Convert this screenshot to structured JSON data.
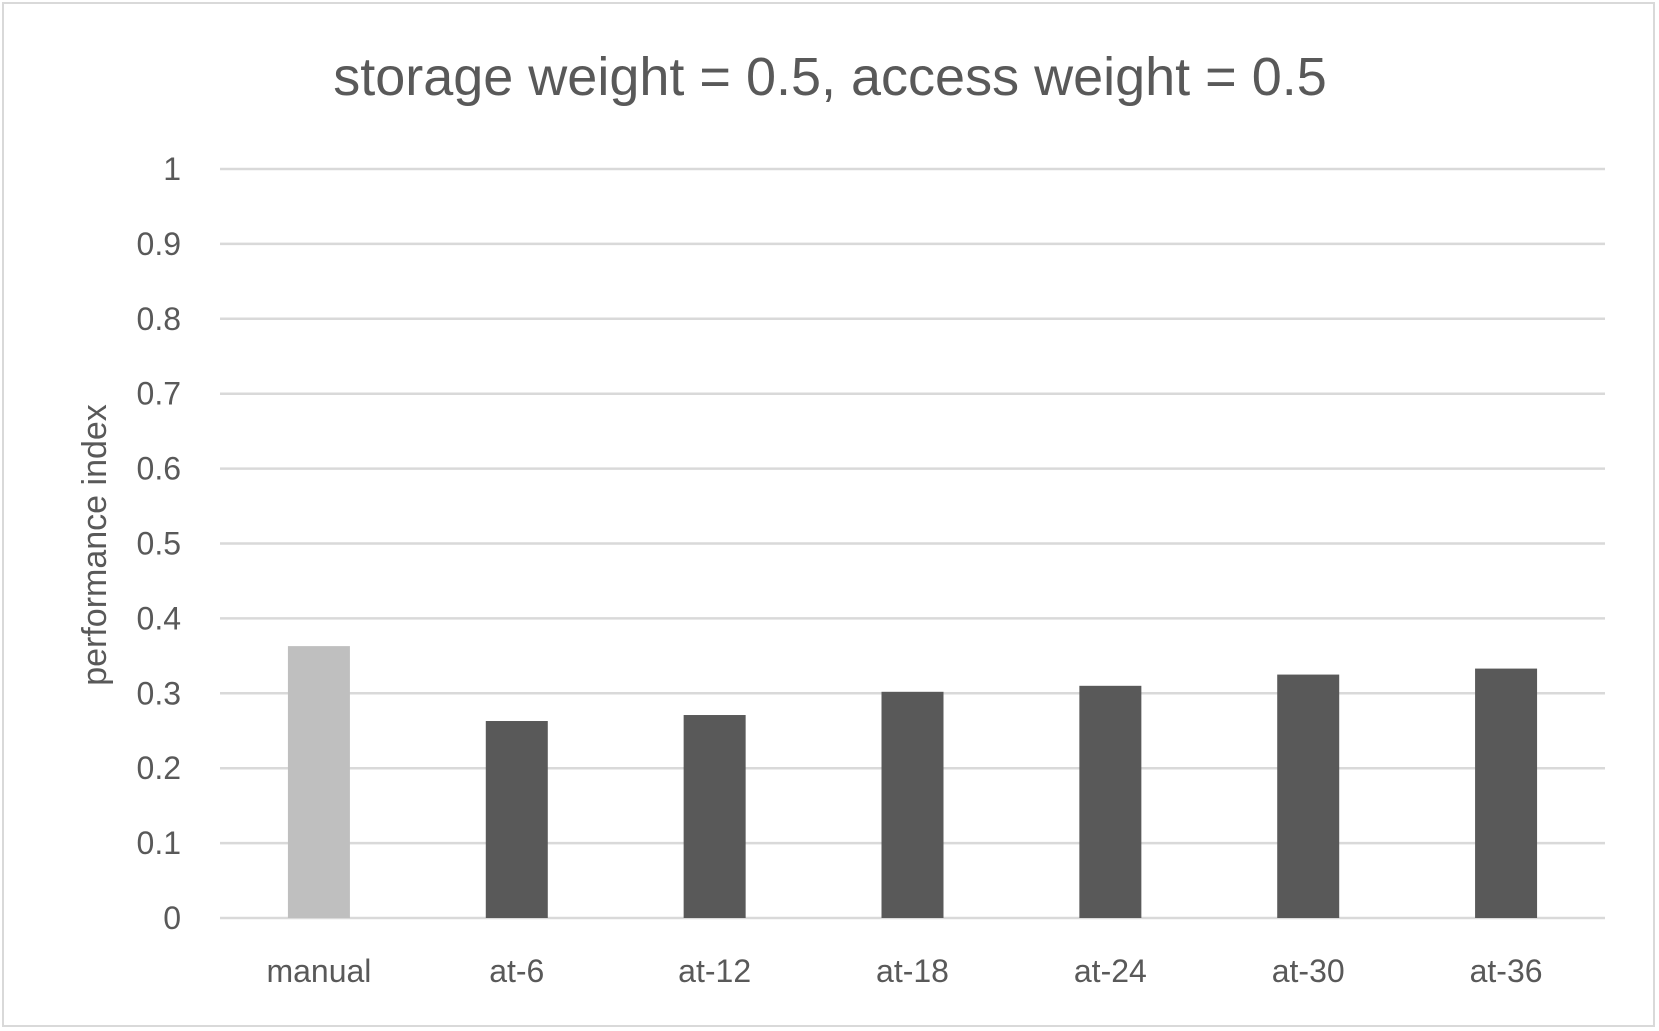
{
  "chart_data": {
    "type": "bar",
    "title": "storage weight = 0.5, access weight = 0.5",
    "xlabel": "",
    "ylabel": "performance index",
    "categories": [
      "manual",
      "at-6",
      "at-12",
      "at-18",
      "at-24",
      "at-30",
      "at-36"
    ],
    "values": [
      0.363,
      0.263,
      0.271,
      0.302,
      0.31,
      0.325,
      0.333
    ],
    "ylim": [
      0,
      1
    ],
    "yticks": [
      "0",
      "0.1",
      "0.2",
      "0.3",
      "0.4",
      "0.5",
      "0.6",
      "0.7",
      "0.8",
      "0.9",
      "1"
    ],
    "grid": true,
    "legend": "none",
    "colors": {
      "highlight_bar": "#bfbfbf",
      "bar": "#595959",
      "text": "#595959",
      "grid": "#d9d9d9"
    }
  }
}
